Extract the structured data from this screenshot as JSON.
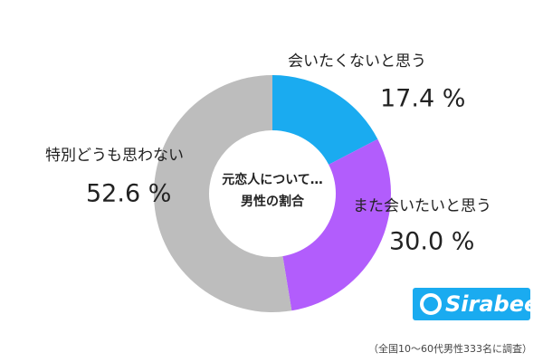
{
  "chart_data": {
    "type": "pie",
    "categories": [
      "会いたくないと思う",
      "また会いたいと思う",
      "特別どうも思わない"
    ],
    "values": [
      17.4,
      30.0,
      52.6
    ],
    "value_labels": [
      "17.4 %",
      "30.0 %",
      "52.6 %"
    ],
    "colors": [
      "#1aabf0",
      "#b25dfc",
      "#bdbdbd"
    ],
    "center_text": [
      "元恋人について…",
      "男性の割合"
    ]
  },
  "logo": "Sirabee",
  "note": "（全国10～60代男性333名に調査）"
}
